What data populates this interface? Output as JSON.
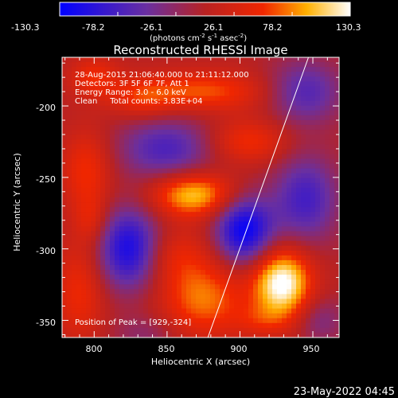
{
  "colorbar": {
    "ticks": [
      "-130.3",
      "-78.2",
      "-26.1",
      "26.1",
      "78.2",
      "130.3"
    ],
    "units_main": "(photons cm",
    "units_sup1": "-2",
    "units_mid": " s",
    "units_sup2": "-1",
    "units_end": " asec",
    "units_sup3": "-2",
    "units_close": ")"
  },
  "plot": {
    "title": "Reconstructed RHESSI Image",
    "info": [
      "28-Aug-2015 21:06:40.000 to 21:11:12.000",
      "Detectors: 3F 5F 6F 7F, Att 1",
      "Energy Range: 3.0 - 6.0 keV",
      "Clean     Total counts: 3.83E+04"
    ],
    "peak_label": "Position of Peak = [929,-324]",
    "xlabel": "Heliocentric X (arcsec)",
    "ylabel": "Heliocentric Y (arcsec)",
    "footer_date": "23-May-2022 04:45"
  },
  "chart_data": {
    "type": "heatmap",
    "title": "Reconstructed RHESSI Image",
    "xlabel": "Heliocentric X (arcsec)",
    "ylabel": "Heliocentric Y (arcsec)",
    "xlim": [
      778,
      968
    ],
    "ylim": [
      -362,
      -166
    ],
    "x_ticks": [
      800,
      850,
      900,
      950
    ],
    "y_ticks": [
      -200,
      -250,
      -300,
      -350
    ],
    "value_range": [
      -130.3,
      130.3
    ],
    "colormap": "blue-purple-red-yellow-white",
    "peak": [
      929,
      -324
    ],
    "blobs": [
      {
        "x": 929,
        "y": -324,
        "amp": 140,
        "sx": 14,
        "sy": 17
      },
      {
        "x": 868,
        "y": -262,
        "amp": 105,
        "sx": 20,
        "sy": 11
      },
      {
        "x": 903,
        "y": -287,
        "amp": -125,
        "sx": 14,
        "sy": 17
      },
      {
        "x": 824,
        "y": -300,
        "amp": -115,
        "sx": 15,
        "sy": 20
      },
      {
        "x": 905,
        "y": -225,
        "amp": 55,
        "sx": 20,
        "sy": 11
      },
      {
        "x": 875,
        "y": -190,
        "amp": 65,
        "sx": 30,
        "sy": 10
      },
      {
        "x": 833,
        "y": -195,
        "amp": 45,
        "sx": 16,
        "sy": 10
      },
      {
        "x": 800,
        "y": -180,
        "amp": 50,
        "sx": 12,
        "sy": 10
      },
      {
        "x": 850,
        "y": -230,
        "amp": -75,
        "sx": 24,
        "sy": 16
      },
      {
        "x": 795,
        "y": -245,
        "amp": 55,
        "sx": 12,
        "sy": 20
      },
      {
        "x": 790,
        "y": -330,
        "amp": 50,
        "sx": 12,
        "sy": 25
      },
      {
        "x": 875,
        "y": -335,
        "amp": 75,
        "sx": 20,
        "sy": 18
      },
      {
        "x": 855,
        "y": -305,
        "amp": 40,
        "sx": 18,
        "sy": 14
      },
      {
        "x": 945,
        "y": -265,
        "amp": -80,
        "sx": 16,
        "sy": 22
      },
      {
        "x": 945,
        "y": -190,
        "amp": -70,
        "sx": 18,
        "sy": 16
      },
      {
        "x": 955,
        "y": -350,
        "amp": -40,
        "sx": 12,
        "sy": 12
      },
      {
        "x": 915,
        "y": -350,
        "amp": 30,
        "sx": 14,
        "sy": 8
      },
      {
        "x": 835,
        "y": -360,
        "amp": -30,
        "sx": 16,
        "sy": 10
      },
      {
        "x": 798,
        "y": -280,
        "amp": 35,
        "sx": 8,
        "sy": 12
      }
    ],
    "limb_line": {
      "x": [
        878,
        947
      ],
      "y": [
        -362,
        -166
      ]
    }
  }
}
